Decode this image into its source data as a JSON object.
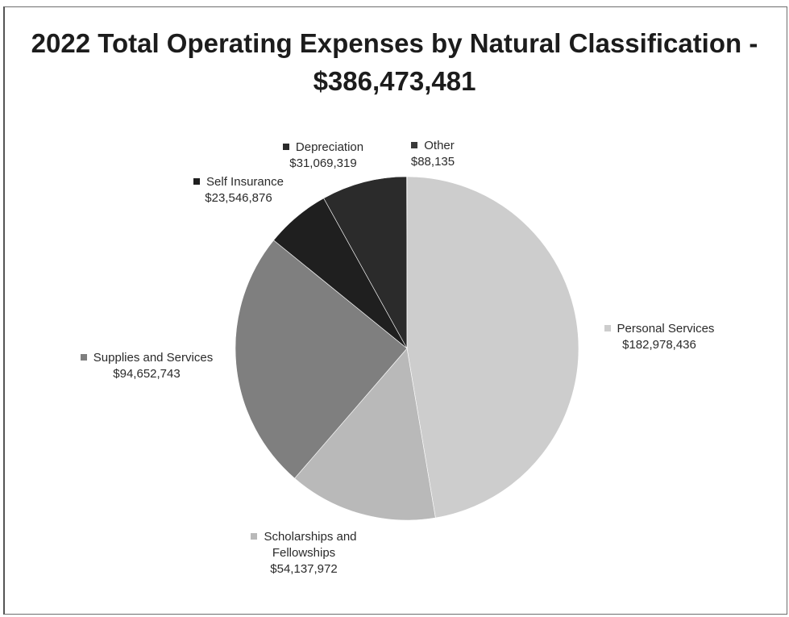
{
  "chart_data": {
    "type": "pie",
    "title": "2022 Total Operating Expenses by Natural Classification - $386,473,481",
    "total": 386473481,
    "start_angle_deg": 0,
    "direction": "clockwise",
    "slices": [
      {
        "label": "Personal Services",
        "value": 182978436,
        "value_label": "$182,978,436",
        "color": "#cdcdcd"
      },
      {
        "label": "Scholarships and Fellowships",
        "value": 54137972,
        "value_label": "$54,137,972",
        "color": "#b9b9b9"
      },
      {
        "label": "Supplies and Services",
        "value": 94652743,
        "value_label": "$94,652,743",
        "color": "#7f7f7f"
      },
      {
        "label": "Self Insurance",
        "value": 23546876,
        "value_label": "$23,546,876",
        "color": "#1f1f1f"
      },
      {
        "label": "Depreciation",
        "value": 31069319,
        "value_label": "$31,069,319",
        "color": "#2b2b2b"
      },
      {
        "label": "Other",
        "value": 88135,
        "value_label": "$88,135",
        "color": "#3a3a3a"
      }
    ]
  }
}
